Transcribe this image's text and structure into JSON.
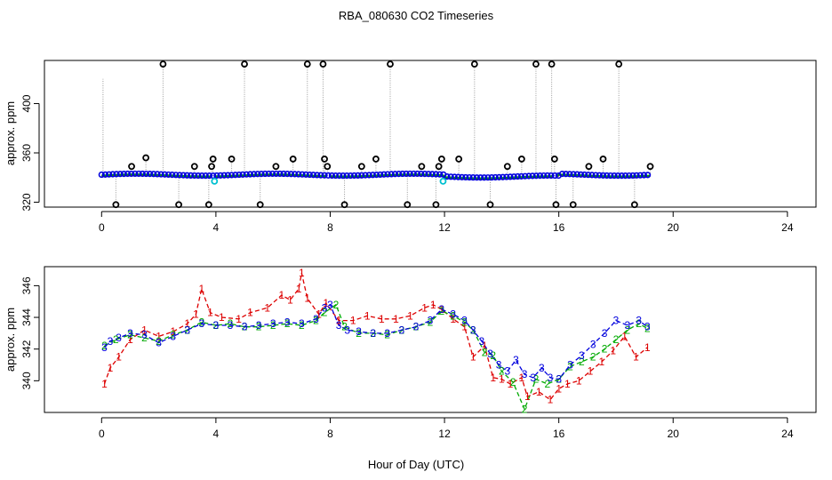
{
  "title": "RBA_080630  CO2 Timeseries",
  "xlabel": "Hour of Day (UTC)",
  "chart_data": [
    {
      "type": "scatter",
      "panel": "top",
      "ylabel": "approx. ppm",
      "xlim": [
        -2,
        25
      ],
      "ylim": [
        316,
        435
      ],
      "xticks": [
        0,
        4,
        8,
        12,
        16,
        20,
        24
      ],
      "yticks": [
        320,
        360,
        400
      ],
      "series": [
        {
          "name": "raw (black circles)",
          "color": "#000000",
          "x": [
            0.5,
            1.05,
            1.55,
            2.15,
            2.7,
            3.25,
            3.75,
            3.85,
            3.9,
            4.55,
            5.0,
            5.55,
            6.1,
            6.7,
            7.2,
            7.75,
            7.8,
            7.9,
            8.5,
            9.1,
            9.6,
            10.1,
            10.7,
            11.2,
            11.7,
            11.8,
            11.9,
            12.5,
            13.05,
            13.6,
            14.2,
            14.7,
            15.2,
            15.75,
            15.85,
            15.9,
            16.5,
            17.05,
            17.55,
            18.1,
            18.65,
            19.2
          ],
          "y": [
            318,
            349,
            356,
            432,
            318,
            349,
            318,
            349,
            355,
            355,
            432,
            318,
            349,
            355,
            432,
            432,
            355,
            349,
            318,
            349,
            355,
            432,
            318,
            349,
            318,
            349,
            355,
            355,
            432,
            318,
            349,
            355,
            432,
            432,
            355,
            318,
            318,
            349,
            355,
            432,
            318,
            349
          ]
        },
        {
          "name": "cyan flagged",
          "color": "#00c0d0",
          "x": [
            3.95,
            11.95
          ],
          "y": [
            337,
            337
          ]
        },
        {
          "name": "1",
          "color": "#dd0000",
          "approx_level": 341.5
        },
        {
          "name": "2",
          "color": "#00aa00",
          "approx_level": 341.8
        },
        {
          "name": "3",
          "color": "#0000dd",
          "approx_level": 342.3
        }
      ]
    },
    {
      "type": "line",
      "panel": "bottom",
      "ylabel": "approx. ppm",
      "xlim": [
        -2,
        25
      ],
      "ylim": [
        338.0,
        347.2
      ],
      "xticks": [
        0,
        4,
        8,
        12,
        16,
        20,
        24
      ],
      "yticks": [
        340,
        342,
        344,
        346
      ],
      "series": [
        {
          "name": "1",
          "color": "#dd0000",
          "x": [
            0.1,
            0.3,
            0.6,
            1.0,
            1.5,
            2.0,
            2.5,
            3.0,
            3.3,
            3.5,
            3.8,
            4.2,
            4.8,
            5.2,
            5.8,
            6.3,
            6.6,
            6.9,
            7.0,
            7.2,
            7.6,
            7.85,
            8.3,
            8.8,
            9.3,
            9.8,
            10.3,
            10.8,
            11.3,
            11.6,
            11.9,
            12.3,
            12.7,
            13.0,
            13.4,
            13.7,
            14.0,
            14.3,
            14.7,
            14.9,
            15.3,
            15.7,
            16.0,
            16.3,
            16.7,
            17.1,
            17.5,
            17.9,
            18.3,
            18.7,
            19.1
          ],
          "y": [
            339.8,
            340.8,
            341.5,
            342.6,
            343.2,
            342.8,
            343.1,
            343.6,
            344.2,
            345.8,
            344.3,
            344.0,
            343.9,
            344.3,
            344.6,
            345.4,
            345.1,
            345.8,
            346.8,
            345.2,
            344.2,
            344.9,
            343.8,
            343.8,
            344.1,
            343.9,
            343.9,
            344.1,
            344.6,
            344.8,
            344.5,
            343.9,
            343.4,
            341.5,
            342.2,
            340.2,
            340.1,
            339.8,
            340.2,
            339.0,
            339.3,
            338.8,
            339.5,
            339.8,
            340.0,
            340.6,
            341.2,
            341.9,
            342.8,
            341.5,
            342.1
          ]
        },
        {
          "name": "2",
          "color": "#00aa00",
          "x": [
            0.1,
            0.5,
            1.0,
            1.5,
            2.0,
            2.5,
            3.0,
            3.5,
            4.0,
            4.5,
            5.0,
            5.5,
            6.0,
            6.5,
            7.0,
            7.5,
            7.8,
            8.2,
            8.5,
            9.0,
            9.5,
            10.0,
            10.5,
            11.0,
            11.5,
            11.9,
            12.3,
            12.7,
            13.0,
            13.4,
            13.7,
            14.0,
            14.4,
            14.8,
            15.2,
            15.6,
            16.0,
            16.4,
            16.8,
            17.2,
            17.6,
            18.0,
            18.4,
            18.8,
            19.1
          ],
          "y": [
            342.2,
            342.6,
            342.9,
            342.7,
            342.5,
            342.9,
            343.2,
            343.7,
            343.5,
            343.6,
            343.4,
            343.4,
            343.5,
            343.6,
            343.5,
            343.8,
            344.3,
            344.8,
            343.4,
            343.0,
            343.0,
            342.9,
            343.2,
            343.4,
            343.7,
            344.4,
            344.1,
            343.7,
            343.2,
            341.8,
            341.6,
            340.6,
            339.9,
            338.2,
            340.1,
            339.8,
            340.1,
            340.9,
            341.2,
            341.5,
            342.0,
            342.6,
            343.2,
            343.6,
            343.3
          ]
        },
        {
          "name": "3",
          "color": "#0000dd",
          "x": [
            0.1,
            0.3,
            0.6,
            1.0,
            1.5,
            2.0,
            2.5,
            3.0,
            3.5,
            4.0,
            4.5,
            5.0,
            5.5,
            6.0,
            6.5,
            7.0,
            7.5,
            7.8,
            8.0,
            8.3,
            8.6,
            9.0,
            9.5,
            10.0,
            10.5,
            11.0,
            11.5,
            11.9,
            12.3,
            12.7,
            13.0,
            13.3,
            13.6,
            13.9,
            14.2,
            14.5,
            14.8,
            15.1,
            15.4,
            15.7,
            16.0,
            16.4,
            16.8,
            17.2,
            17.6,
            18.0,
            18.4,
            18.8,
            19.1
          ],
          "y": [
            342.1,
            342.5,
            342.7,
            343.0,
            342.9,
            342.4,
            342.8,
            343.2,
            343.6,
            343.5,
            343.5,
            343.4,
            343.5,
            343.6,
            343.7,
            343.6,
            343.9,
            344.6,
            344.8,
            343.5,
            343.2,
            343.1,
            343.0,
            343.0,
            343.2,
            343.4,
            343.8,
            344.5,
            344.2,
            343.8,
            343.2,
            342.5,
            341.7,
            341.0,
            340.6,
            341.3,
            340.4,
            340.2,
            340.8,
            340.2,
            340.1,
            341.0,
            341.6,
            342.3,
            343.0,
            343.8,
            343.5,
            343.8,
            343.4
          ]
        }
      ]
    }
  ]
}
